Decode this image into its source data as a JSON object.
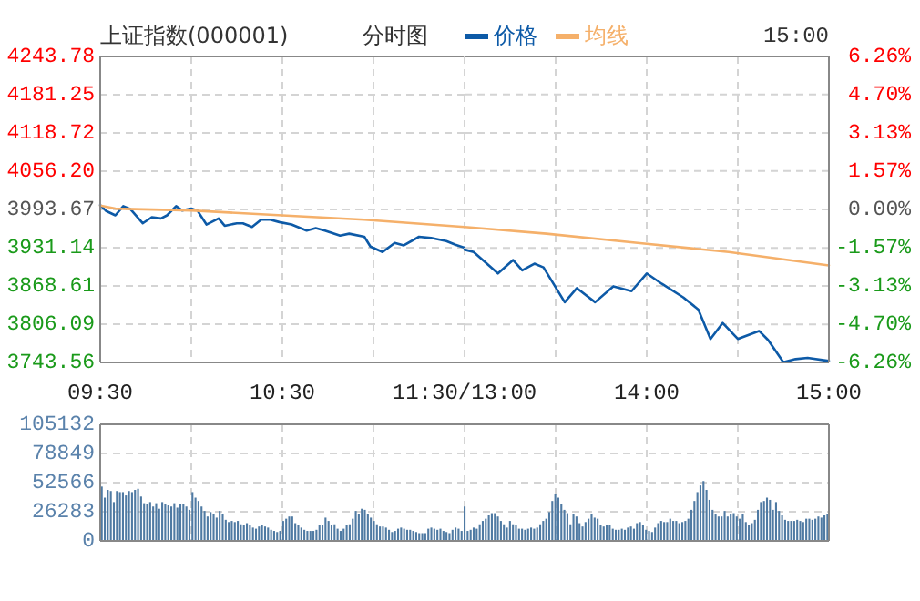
{
  "chart_data": [
    {
      "type": "line",
      "title": "上证指数(000001)",
      "subtitle": "分时图",
      "legend": "top",
      "grid": true,
      "xlim": [
        9.5,
        11.5
      ],
      "xticks": [
        {
          "value": 9.5,
          "label": "09:30"
        },
        {
          "value": 10,
          "label": null
        },
        {
          "value": 10.5,
          "label": "10:30"
        },
        {
          "value": 11,
          "label": null
        },
        {
          "value": 11.5,
          "label": "11:30/13:00"
        }
      ],
      "ylim": [
        3743.56,
        4243.78
      ],
      "yticks": [
        3743.56,
        3806.09,
        3868.61,
        3931.14,
        3993.67,
        {
          "value": 4056.2,
          "label": "4056.20"
        },
        4118.72,
        4181.25,
        4243.78
      ],
      "series": [
        {
          "name": "价格",
          "color": "#0d5aa7",
          "x": [
            9.5,
            9.5333,
            9.5833,
            9.6267,
            9.6667,
            9.7333,
            9.7833,
            9.8333,
            9.8667,
            9.9167,
            9.95,
            10,
            10.0333,
            10.0833,
            10.15,
            10.1833,
            10.25,
            10.2833,
            10.3333,
            10.3833,
            10.4333,
            10.4833,
            10.55,
            10.6333,
            10.6833,
            10.7333,
            10.8167,
            10.8667,
            10.95,
            10.9833,
            11.05,
            11.1167,
            11.1667,
            11.25,
            11.3167,
            11.4,
            11.45,
            11.5
          ],
          "values": [
            4001,
            3991,
            3984,
            3999,
            3994,
            3971,
            3981,
            3979,
            3984,
            3999,
            3992,
            3995,
            3992,
            3969,
            3979,
            3967,
            3971,
            3971,
            3965,
            3977,
            3977,
            3973,
            3969,
            3959,
            3963,
            3959,
            3951,
            3954,
            3949,
            3933,
            3924,
            3939,
            3935,
            3949,
            3947,
            3942,
            3936,
            3931
          ]
        },
        {
          "name": "均线",
          "color": "#f5b06a",
          "x": [
            9.5,
            9.5833,
            10,
            10.5,
            10.95,
            11.5
          ],
          "values": [
            4000,
            3995,
            3992,
            3984,
            3977,
            3965
          ]
        }
      ]
    },
    {
      "type": "line",
      "annotations": [
        "15:00"
      ],
      "grid": true,
      "xlim": [
        13,
        15
      ],
      "xticks": [
        {
          "value": 13,
          "label": null
        },
        {
          "value": 13.5,
          "label": null
        },
        {
          "value": 14,
          "label": "14:00"
        },
        {
          "value": 14.5,
          "label": null
        },
        {
          "value": 15,
          "label": "15:00"
        }
      ],
      "ylim": [
        3743.56,
        4243.78
      ],
      "y2lim": [
        -6.26,
        6.26
      ],
      "y2ticks": [
        {
          "value": -6.26,
          "label": "-6.26%"
        },
        {
          "value": -4.7,
          "label": "-4.70%"
        },
        {
          "value": -3.13,
          "label": "-3.13%"
        },
        {
          "value": -1.57,
          "label": "-1.57%"
        },
        {
          "value": 0,
          "label": "0.00%"
        },
        {
          "value": 1.57,
          "label": "1.57%"
        },
        {
          "value": 3.13,
          "label": "3.13%"
        },
        {
          "value": 4.7,
          "label": "4.70%"
        },
        {
          "value": 6.26,
          "label": "6.26%"
        }
      ],
      "series": [
        {
          "color": "#0d5aa7",
          "x": [
            13,
            13.05,
            13.1833,
            13.2667,
            13.3167,
            13.3833,
            13.4333,
            13.55,
            13.6167,
            13.7167,
            13.8167,
            13.9167,
            14,
            14.0833,
            14.2,
            14.2833,
            14.35,
            14.4167,
            14.5,
            14.6167,
            14.6667,
            14.75,
            14.8167,
            14.8833,
            15
          ],
          "values": [
            3928,
            3924,
            3889,
            3911,
            3894,
            3905,
            3899,
            3842,
            3865,
            3842,
            3868,
            3860,
            3889,
            3872,
            3850,
            3830,
            3782,
            3808,
            3782,
            3795,
            3780,
            3744,
            3749,
            3751,
            3746
          ]
        },
        {
          "color": "#f5b06a",
          "x": [
            13,
            13.45,
            13.95,
            14.45,
            15
          ],
          "values": [
            3965,
            3954,
            3939,
            3924,
            3902
          ]
        }
      ]
    },
    {
      "type": "bar",
      "grid": true,
      "tick_labels": "y",
      "categories": [
        null,
        null,
        null,
        null,
        null,
        null,
        null,
        null,
        null,
        null,
        null,
        null,
        null,
        null,
        null,
        null,
        null,
        null,
        null,
        null,
        null,
        null,
        null,
        null,
        null,
        null,
        null,
        null,
        null,
        null,
        null,
        null,
        null,
        null,
        null,
        null,
        null,
        null,
        null,
        null,
        null,
        null,
        null,
        null,
        null,
        null,
        null,
        null,
        null,
        null,
        null,
        null,
        null,
        null,
        null,
        null,
        null,
        null,
        null,
        null,
        null,
        null,
        null,
        null,
        null,
        null,
        null,
        null,
        null,
        null,
        null,
        null,
        null,
        null,
        null,
        null,
        null,
        null,
        null,
        null,
        null,
        null,
        null,
        null,
        null,
        null,
        null,
        null,
        null,
        null,
        null,
        null,
        null,
        null,
        null,
        null,
        null,
        null,
        null,
        null,
        null,
        null,
        null,
        null,
        null,
        null,
        null,
        null,
        null,
        null,
        null,
        null,
        null,
        null,
        null,
        null,
        null,
        null,
        null,
        null,
        null,
        null,
        null,
        null,
        null,
        null,
        null,
        null,
        null,
        null,
        null,
        null,
        null,
        null,
        null,
        null,
        null,
        null,
        null,
        null,
        null,
        null,
        null,
        null,
        null,
        null,
        null,
        null,
        null,
        null,
        null,
        null,
        null,
        null,
        null,
        null,
        null,
        null,
        null,
        null,
        null,
        null,
        null,
        null,
        null,
        null,
        null,
        null,
        null,
        null,
        null,
        null,
        null,
        null,
        null,
        null,
        null,
        null,
        null,
        null,
        null,
        null,
        null,
        null,
        null,
        null,
        null,
        null,
        null,
        null,
        null,
        null,
        null,
        null,
        null,
        null,
        null,
        null,
        null,
        null,
        null,
        null,
        null,
        null,
        null,
        null,
        null,
        null,
        null,
        null,
        null,
        null,
        null,
        null,
        null,
        null,
        null,
        null,
        null,
        null,
        null,
        null,
        null,
        null,
        null,
        null,
        null,
        null,
        null,
        null,
        null,
        null,
        null,
        null,
        null,
        null,
        null,
        null,
        null,
        null,
        null
      ],
      "ylim": [
        0,
        105132
      ],
      "yticks": [
        0,
        26283,
        52566,
        78849,
        105132
      ],
      "series": [
        {
          "color": "#4f7aa3",
          "values": [
            49000,
            39000,
            46000,
            45000,
            35000,
            45000,
            44000,
            44000,
            41000,
            45000,
            44000,
            46000,
            47000,
            40000,
            34000,
            33000,
            35000,
            31000,
            34000,
            29000,
            35000,
            33000,
            32000,
            31000,
            34000,
            30000,
            33000,
            33000,
            31000,
            28000,
            44000,
            39000,
            36000,
            31000,
            27000,
            22000,
            26000,
            24000,
            21000,
            27000,
            24000,
            19000,
            17000,
            18000,
            17000,
            18000,
            15000,
            14000,
            16000,
            14000,
            12000,
            11000,
            13000,
            14000,
            13000,
            12000,
            10000,
            9000,
            8000,
            9000,
            18000,
            20000,
            22000,
            22000,
            16000,
            14000,
            12000,
            10000,
            9000,
            9000,
            9000,
            10000,
            14000,
            14000,
            21000,
            18000,
            14000,
            15000,
            11000,
            9000,
            11000,
            14000,
            15000,
            20000,
            27000,
            24000,
            29000,
            28000,
            24000,
            21000,
            18000,
            15000,
            13000,
            13000,
            12000,
            10000,
            8000,
            9000,
            11000,
            12000,
            11000,
            10000,
            10000,
            9000,
            8000,
            7000,
            7000,
            7000,
            11000,
            12000,
            11000,
            10000,
            11000,
            9000,
            8000,
            7000,
            10000,
            12000,
            11000,
            9000,
            31000,
            9000,
            10000,
            12000,
            11000,
            15000,
            18000,
            20000,
            23000,
            25000,
            25000,
            22000,
            18000,
            15000,
            12000,
            18000,
            15000,
            14000,
            11000,
            11000,
            10000,
            11000,
            12000,
            11000,
            12000,
            15000,
            18000,
            20000,
            26000,
            36000,
            42000,
            39000,
            33000,
            28000,
            25000,
            15000,
            24000,
            22000,
            16000,
            13000,
            17000,
            20000,
            24000,
            21000,
            20000,
            14000,
            13000,
            14000,
            14000,
            11000,
            10000,
            10000,
            11000,
            10000,
            12000,
            13000,
            11000,
            16000,
            17000,
            14000,
            10000,
            9000,
            8000,
            12000,
            16000,
            18000,
            17000,
            17000,
            20000,
            18000,
            18000,
            16000,
            17000,
            18000,
            20000,
            28000,
            36000,
            44000,
            50000,
            54000,
            46000,
            37000,
            28000,
            24000,
            22000,
            22000,
            27000,
            22000,
            24000,
            25000,
            22000,
            20000,
            24000,
            17000,
            14000,
            16000,
            19000,
            28000,
            35000,
            36000,
            39000,
            37000,
            28000,
            35000,
            27000,
            23000,
            19000,
            18000,
            18000,
            18000,
            19000,
            18000,
            17000,
            20000,
            20000,
            19000,
            20000,
            22000,
            21000,
            23000,
            24000
          ]
        }
      ]
    }
  ]
}
